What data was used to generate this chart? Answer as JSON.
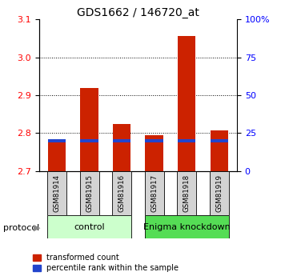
{
  "title": "GDS1662 / 146720_at",
  "samples": [
    "GSM81914",
    "GSM81915",
    "GSM81916",
    "GSM81917",
    "GSM81918",
    "GSM81919"
  ],
  "red_values": [
    2.782,
    2.92,
    2.825,
    2.795,
    3.055,
    2.808
  ],
  "blue_bottoms": [
    2.776,
    2.776,
    2.776,
    2.776,
    2.776,
    2.776
  ],
  "blue_heights": [
    0.008,
    0.008,
    0.008,
    0.008,
    0.008,
    0.008
  ],
  "ymin": 2.7,
  "ymax": 3.1,
  "right_yticks": [
    0,
    25,
    50,
    75,
    100
  ],
  "right_yticklabels": [
    "0",
    "25",
    "50",
    "75",
    "100%"
  ],
  "left_yticks": [
    2.7,
    2.8,
    2.9,
    3.0,
    3.1
  ],
  "dotted_lines": [
    2.8,
    2.9,
    3.0
  ],
  "bar_width": 0.55,
  "bar_color_red": "#cc2200",
  "bar_color_blue": "#2244cc",
  "group1_label": "control",
  "group2_label": "Enigma knockdown",
  "protocol_label": "protocol",
  "legend_red": "transformed count",
  "legend_blue": "percentile rank within the sample",
  "sample_box_color": "#d3d3d3",
  "group1_color": "#ccffcc",
  "group2_color": "#55dd55",
  "title_fontsize": 10,
  "tick_fontsize": 8,
  "label_fontsize": 8
}
